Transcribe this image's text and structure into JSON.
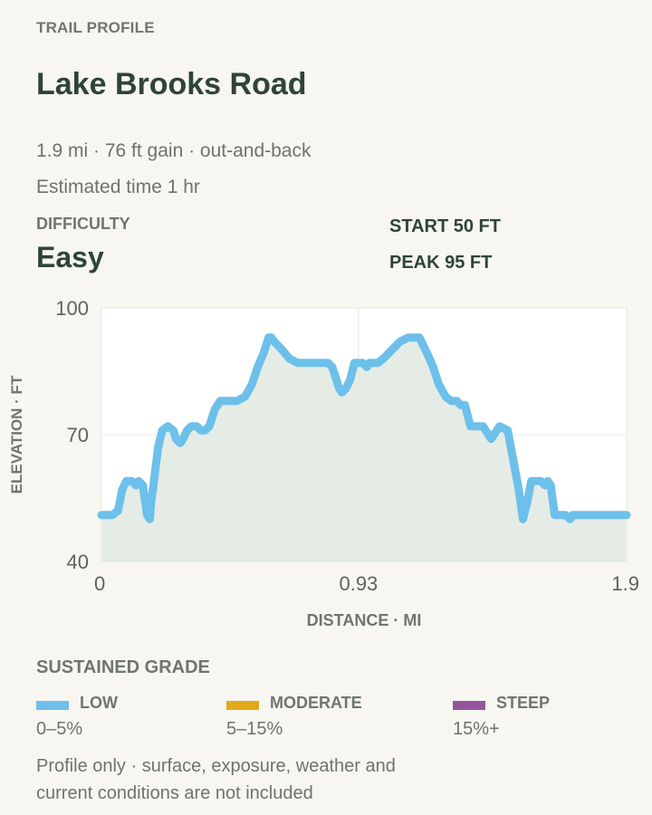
{
  "header": {
    "kicker": "TRAIL PROFILE",
    "title": "Lake Brooks Road",
    "meta": "1.9 mi · 76 ft gain · out-and-back",
    "estimated_time": "Estimated time 1 hr"
  },
  "difficulty": {
    "label": "DIFFICULTY",
    "value": "Easy"
  },
  "stats": {
    "start": "START 50 FT",
    "peak": "PEAK 95 FT"
  },
  "colors": {
    "line": "#6cc0ea",
    "area": "#e5ece5",
    "plot_bg": "#ffffff",
    "grid": "#e7e7e3",
    "low": "#6cc0ea",
    "moderate": "#e3a919",
    "steep": "#96549c"
  },
  "chart_data": {
    "type": "area",
    "xlabel": "DISTANCE · MI",
    "ylabel": "ELEVATION · FT",
    "xlim": [
      0,
      1.9
    ],
    "ylim": [
      40,
      100
    ],
    "x_ticks": [
      "0",
      "0.93",
      "1.9"
    ],
    "y_ticks": [
      "100",
      "70",
      "40"
    ],
    "grid": true,
    "series": [
      {
        "x": [
          0,
          0.015,
          0.04,
          0.06,
          0.075,
          0.09,
          0.11,
          0.125,
          0.135,
          0.15,
          0.165,
          0.175,
          0.18,
          0.19,
          0.205,
          0.22,
          0.24,
          0.26,
          0.27,
          0.285,
          0.295,
          0.31,
          0.325,
          0.345,
          0.36,
          0.375,
          0.39,
          0.41,
          0.43,
          0.46,
          0.49,
          0.52,
          0.545,
          0.565,
          0.585,
          0.605,
          0.615,
          0.625,
          0.64,
          0.655,
          0.68,
          0.71,
          0.75,
          0.78,
          0.8,
          0.82,
          0.835,
          0.85,
          0.86,
          0.87,
          0.885,
          0.9,
          0.915,
          0.93,
          0.945,
          0.96,
          0.97,
          0.98,
          0.99,
          1.0,
          1.02,
          1.05,
          1.08,
          1.11,
          1.15,
          1.18,
          1.2,
          1.22,
          1.245,
          1.265,
          1.275,
          1.285,
          1.3,
          1.315,
          1.335,
          1.355,
          1.38,
          1.41,
          1.44,
          1.47,
          1.49,
          1.51,
          1.525,
          1.54,
          1.555,
          1.57,
          1.59,
          1.605,
          1.615,
          1.625,
          1.64,
          1.66,
          1.68,
          1.695,
          1.705,
          1.71,
          1.72,
          1.725,
          1.735,
          1.75,
          1.765,
          1.775,
          1.79,
          1.81,
          1.825,
          1.84,
          1.86,
          1.875,
          1.885,
          1.9
        ],
        "values": [
          51,
          51,
          51,
          52,
          57,
          59,
          59,
          58,
          59,
          58,
          51,
          50,
          54,
          59,
          67,
          71,
          72,
          71,
          69,
          68,
          69,
          71,
          72,
          72,
          71,
          71,
          72,
          76,
          78,
          78,
          78,
          79,
          82,
          86,
          89,
          93,
          93,
          92,
          91,
          90,
          88,
          87,
          87,
          87,
          87,
          87,
          86,
          83,
          81,
          80,
          81,
          83,
          87,
          87,
          87,
          86,
          87,
          87,
          87,
          87,
          88,
          90,
          92,
          93,
          93,
          89,
          86,
          82,
          79,
          78,
          78,
          78,
          77,
          77,
          72,
          72,
          72,
          69,
          72,
          71,
          64,
          57,
          50,
          54,
          59,
          59,
          59,
          58,
          59,
          58,
          51,
          51,
          51,
          50,
          51,
          51,
          51,
          51,
          51,
          51,
          51,
          51,
          51,
          51,
          51,
          51,
          51,
          51,
          51,
          51
        ]
      }
    ]
  },
  "grade": {
    "title": "SUSTAINED GRADE",
    "items": [
      {
        "name": "LOW",
        "range": "0–5%"
      },
      {
        "name": "MODERATE",
        "range": "5–15%"
      },
      {
        "name": "STEEP",
        "range": "15%+"
      }
    ]
  },
  "footnote": "Profile only · surface, exposure, weather and current conditions are not included"
}
